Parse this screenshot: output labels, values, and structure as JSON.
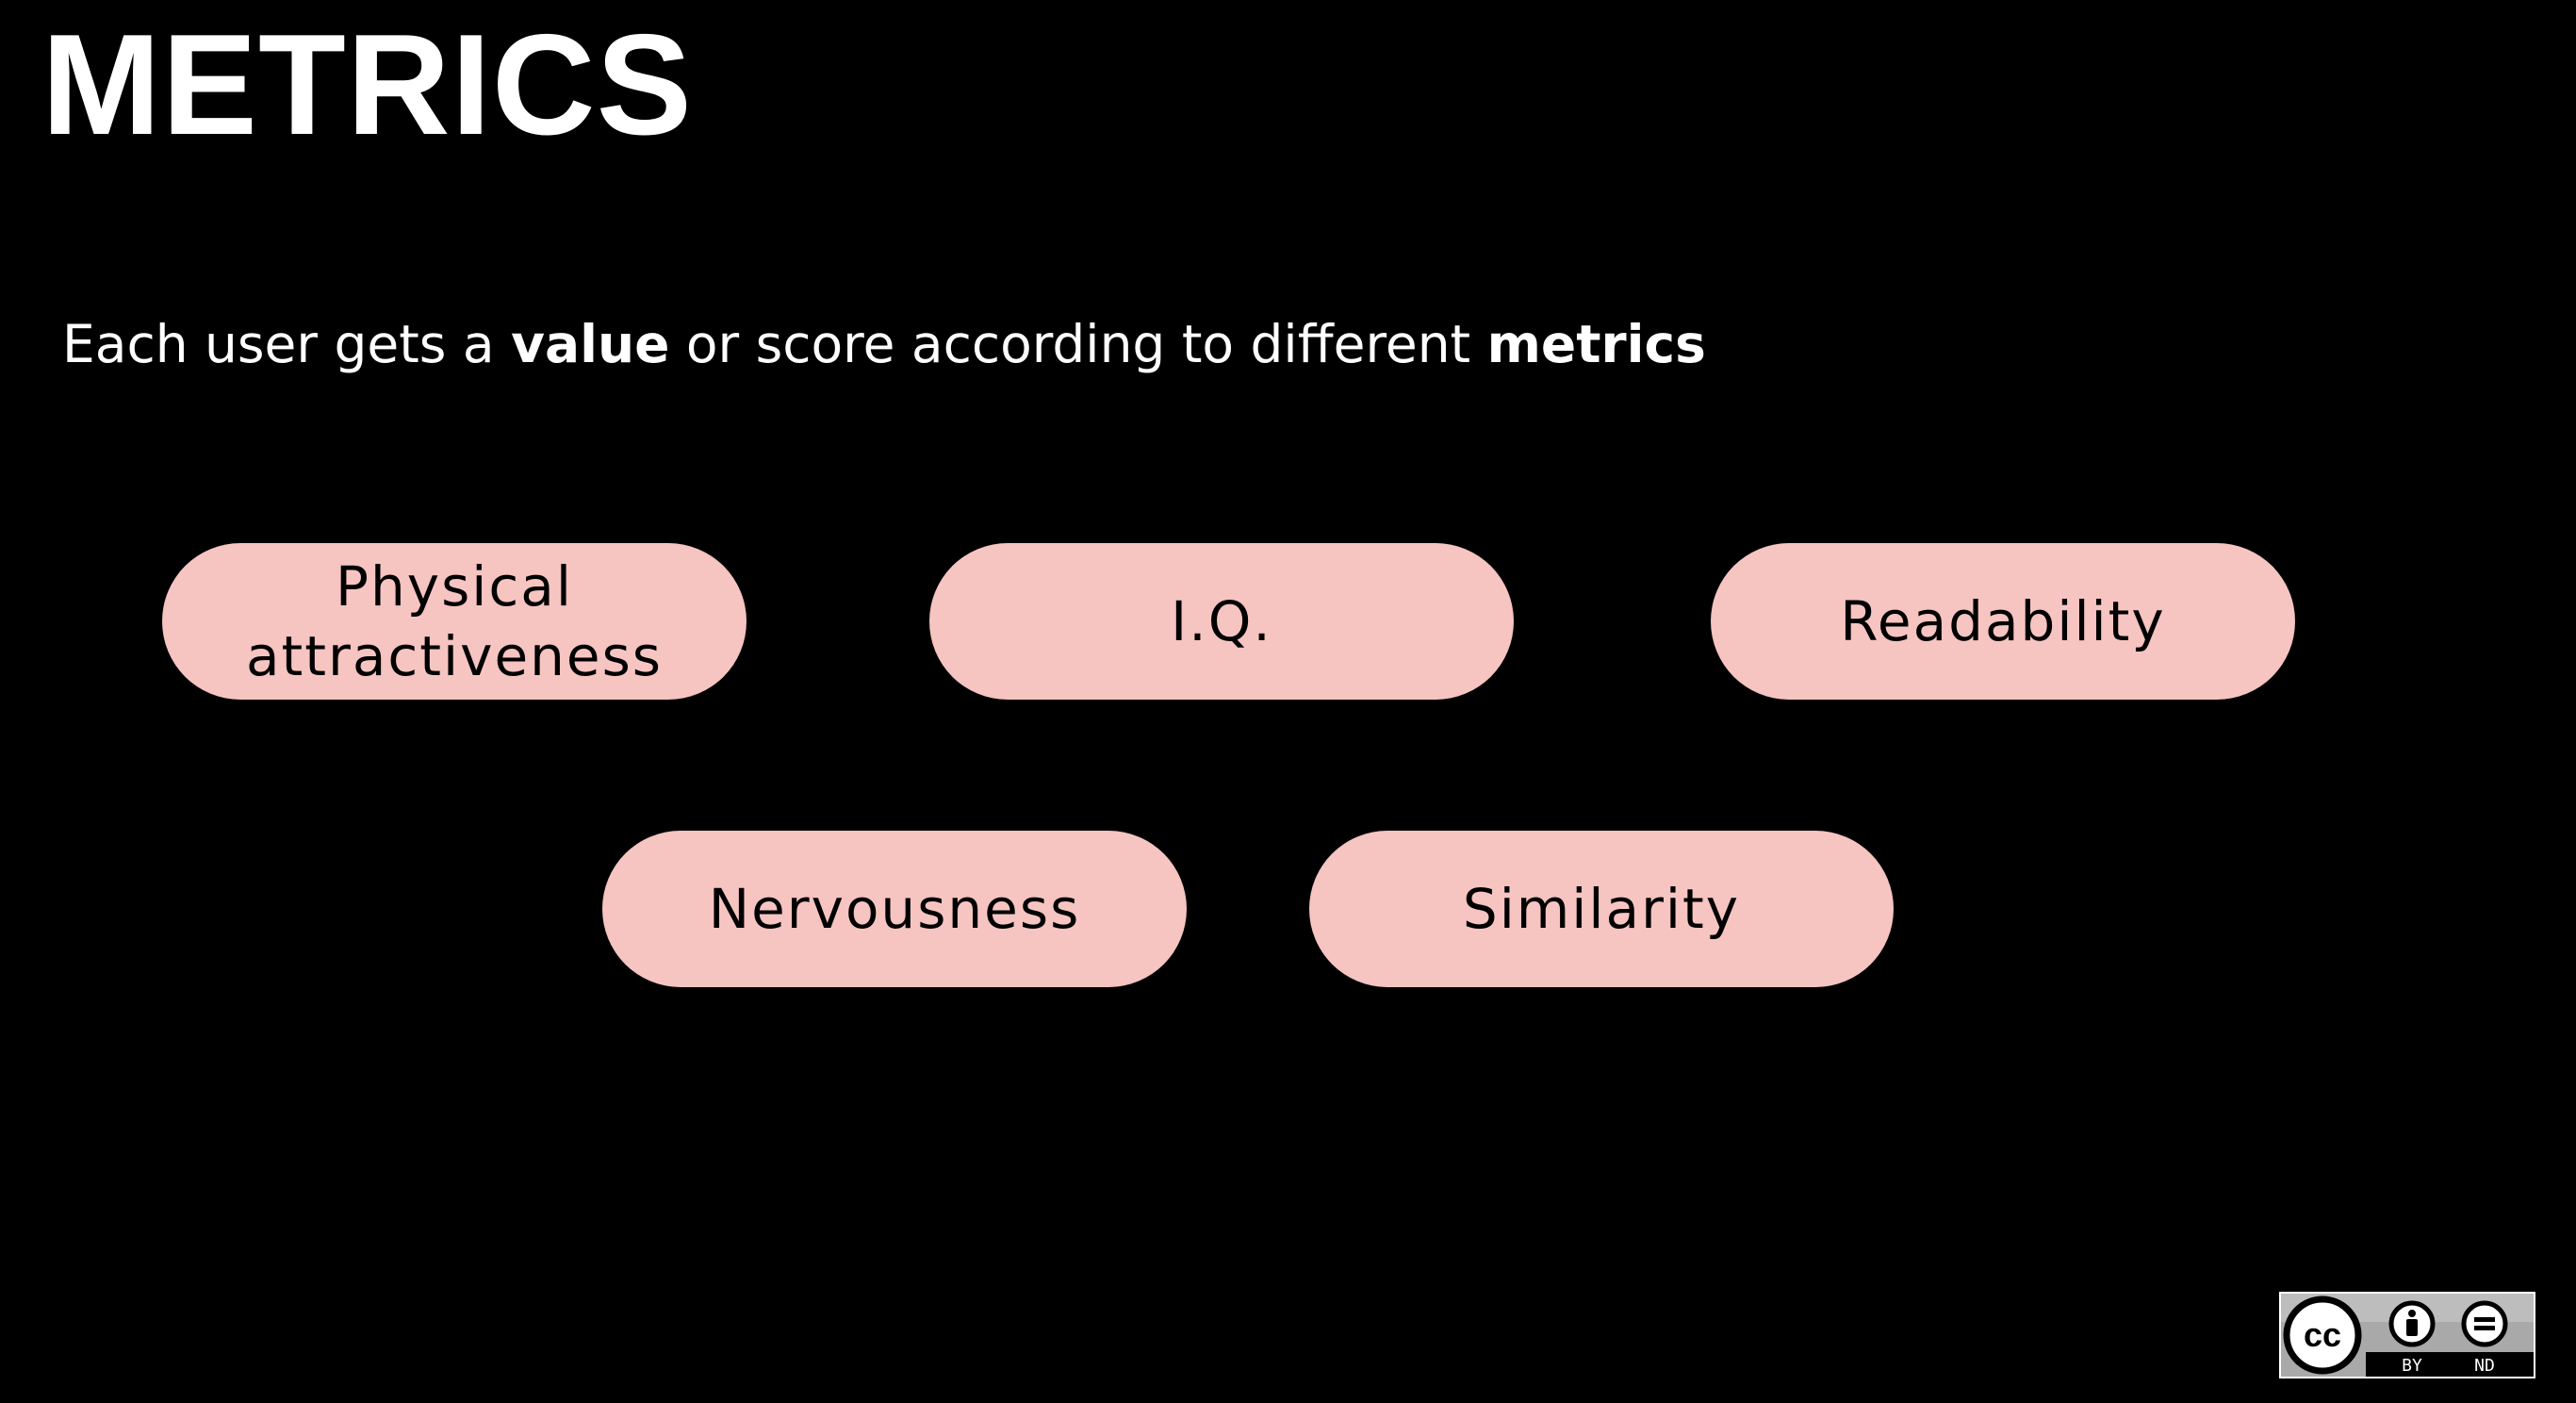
{
  "slide": {
    "title": "METRICS",
    "subtitle": {
      "part1": "Each user gets a ",
      "bold1": "value",
      "part2": " or score according to different ",
      "bold2": "metrics"
    },
    "metrics": [
      {
        "line1": "Physical",
        "line2": "attractiveness"
      },
      {
        "line1": "I.Q.",
        "line2": ""
      },
      {
        "line1": "Readability",
        "line2": ""
      },
      {
        "line1": "Nervousness",
        "line2": ""
      },
      {
        "line1": "Similarity",
        "line2": ""
      }
    ],
    "license": {
      "cc": "cc",
      "by": "BY",
      "nd": "ND"
    }
  },
  "colors": {
    "background": "#000000",
    "text": "#ffffff",
    "pill": "#f6c4c1",
    "pill_text": "#000000"
  },
  "icons": [
    "cc-icon",
    "attribution-icon",
    "noderivatives-icon"
  ]
}
